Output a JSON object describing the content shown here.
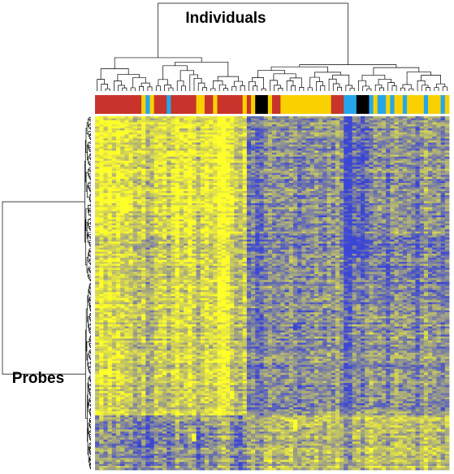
{
  "chart_data": {
    "type": "heatmap",
    "title": "",
    "column_axis_label": "Individuals",
    "row_axis_label": "Probes",
    "n_columns": 84,
    "n_rows": 175,
    "value_range": [
      -1,
      1
    ],
    "color_scale": {
      "low": "#3b46d4",
      "mid": "#a8a97e",
      "high": "#ffff2a"
    },
    "group_colors": {
      "red": "#c8342b",
      "yellow": "#f9d100",
      "blue": "#25a6ec",
      "black": "#000000"
    },
    "column_groups": [
      "red",
      "red",
      "red",
      "red",
      "red",
      "red",
      "red",
      "red",
      "red",
      "red",
      "red",
      "yellow",
      "blue",
      "yellow",
      "red",
      "red",
      "red",
      "blue",
      "red",
      "red",
      "red",
      "red",
      "red",
      "red",
      "yellow",
      "yellow",
      "red",
      "red",
      "yellow",
      "red",
      "red",
      "red",
      "red",
      "red",
      "red",
      "yellow",
      "red",
      "yellow",
      "black",
      "black",
      "black",
      "yellow",
      "red",
      "red",
      "yellow",
      "yellow",
      "yellow",
      "yellow",
      "yellow",
      "yellow",
      "yellow",
      "yellow",
      "yellow",
      "yellow",
      "yellow",
      "yellow",
      "red",
      "red",
      "red",
      "blue",
      "blue",
      "blue",
      "black",
      "black",
      "black",
      "blue",
      "yellow",
      "blue",
      "blue",
      "yellow",
      "blue",
      "yellow",
      "yellow",
      "blue",
      "yellow",
      "yellow",
      "yellow",
      "yellow",
      "blue",
      "yellow",
      "yellow",
      "yellow",
      "blue",
      "yellow"
    ],
    "column_segments": [
      {
        "cols": [
          0,
          36
        ],
        "rows": [
          0,
          175
        ],
        "value": 0.45
      },
      {
        "cols": [
          36,
          59
        ],
        "rows": [
          0,
          175
        ],
        "value": -0.3
      },
      {
        "cols": [
          59,
          84
        ],
        "rows": [
          0,
          175
        ],
        "value": -0.2
      },
      {
        "cols": [
          0,
          36
        ],
        "rows": [
          0,
          60
        ],
        "value": 0.2
      },
      {
        "cols": [
          36,
          84
        ],
        "rows": [
          148,
          175
        ],
        "value": 0.5
      },
      {
        "cols": [
          0,
          36
        ],
        "rows": [
          148,
          175
        ],
        "value": -0.7
      },
      {
        "cols": [
          59,
          66
        ],
        "rows": [
          0,
          70
        ],
        "value": -0.4
      },
      {
        "cols": [
          59,
          84
        ],
        "rows": [
          60,
          95
        ],
        "value": -0.2
      }
    ],
    "column_stripes": [
      {
        "col": 1,
        "value": 0.6
      },
      {
        "col": 3,
        "value": 0.5
      },
      {
        "col": 5,
        "value": 0.5
      },
      {
        "col": 9,
        "value": -0.5
      },
      {
        "col": 10,
        "value": -0.4
      },
      {
        "col": 12,
        "value": -0.9
      },
      {
        "col": 13,
        "value": -0.6
      },
      {
        "col": 17,
        "value": -0.5
      },
      {
        "col": 19,
        "value": 0.6
      },
      {
        "col": 22,
        "value": 0.5
      },
      {
        "col": 24,
        "value": -0.6
      },
      {
        "col": 26,
        "value": 0.4
      },
      {
        "col": 29,
        "value": 0.7
      },
      {
        "col": 30,
        "value": 0.9
      },
      {
        "col": 31,
        "value": 0.6
      },
      {
        "col": 33,
        "value": -0.5
      },
      {
        "col": 34,
        "value": -0.6
      },
      {
        "col": 36,
        "value": -0.4
      },
      {
        "col": 38,
        "value": -0.6
      },
      {
        "col": 39,
        "value": -0.5
      },
      {
        "col": 41,
        "value": 0.3
      },
      {
        "col": 46,
        "value": 0.3
      },
      {
        "col": 48,
        "value": -0.3
      },
      {
        "col": 52,
        "value": 0.4
      },
      {
        "col": 55,
        "value": 0.3
      },
      {
        "col": 57,
        "value": 0.5
      },
      {
        "col": 59,
        "value": -0.8
      },
      {
        "col": 60,
        "value": -0.9
      },
      {
        "col": 63,
        "value": -0.5
      },
      {
        "col": 65,
        "value": 0.4
      },
      {
        "col": 69,
        "value": -0.5
      },
      {
        "col": 71,
        "value": 0.3
      },
      {
        "col": 76,
        "value": -0.6
      },
      {
        "col": 78,
        "value": 0.4
      },
      {
        "col": 82,
        "value": -0.4
      }
    ],
    "spot_highlights": [
      {
        "cols": [
          29,
          31
        ],
        "rows": [
          82,
          90
        ],
        "value": 1.0
      },
      {
        "cols": [
          6,
          8
        ],
        "rows": [
          40,
          48
        ],
        "value": 1.0
      },
      {
        "cols": [
          32,
          33
        ],
        "rows": [
          136,
          140
        ],
        "value": 1.0
      },
      {
        "cols": [
          47,
          48
        ],
        "rows": [
          150,
          155
        ],
        "value": 1.0
      },
      {
        "cols": [
          23,
          24
        ],
        "rows": [
          157,
          161
        ],
        "value": 1.0
      },
      {
        "cols": [
          47,
          48
        ],
        "rows": [
          103,
          106
        ],
        "value": -1.0
      }
    ],
    "noise_amplitude": 0.5,
    "column_dendrogram": {
      "left_leaves": [
        0,
        36
      ],
      "right_leaves": [
        36,
        84
      ],
      "left_cluster_height": 0.38,
      "right_cluster_height": 0.3,
      "root_height": 1.0
    },
    "row_dendrogram": {
      "upper_leaves": [
        0,
        82
      ],
      "lower_leaves": [
        82,
        175
      ],
      "upper_cluster_height": 0.07,
      "lower_cluster_height": 0.06,
      "root_height": 1.0
    }
  }
}
